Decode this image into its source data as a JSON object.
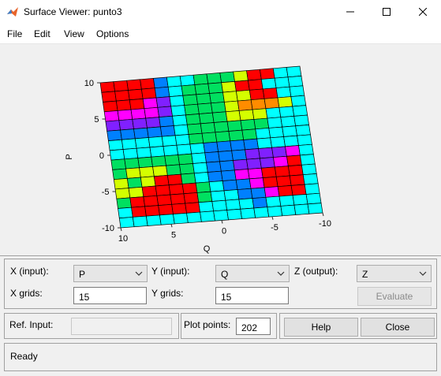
{
  "window": {
    "title": "Surface Viewer: punto3",
    "icon": "matlab-icon"
  },
  "menu": {
    "items": [
      "File",
      "Edit",
      "View",
      "Options"
    ]
  },
  "plot": {
    "ylabel": "P",
    "xlabel": "Q",
    "p_ticks": [
      "10",
      "5",
      "0",
      "-5",
      "-10"
    ],
    "q_ticks": [
      "10",
      "5",
      "0",
      "-5",
      "-10"
    ],
    "p_range": [
      -10,
      10
    ],
    "q_range": [
      -10,
      10
    ],
    "grid": 15,
    "colors": {
      "red": "#ff0000",
      "orange": "#ff8c00",
      "yellow": "#d4ff00",
      "green": "#00e060",
      "cyan": "#00ffff",
      "blue": "#0080ff",
      "purple": "#8020ff",
      "magenta": "#ff00ff"
    }
  },
  "controls": {
    "x_input_label": "X (input):",
    "x_input_value": "P",
    "y_input_label": "Y (input):",
    "y_input_value": "Q",
    "z_output_label": "Z (output):",
    "z_output_value": "Z",
    "x_grids_label": "X grids:",
    "x_grids_value": "15",
    "y_grids_label": "Y grids:",
    "y_grids_value": "15",
    "evaluate_label": "Evaluate",
    "ref_input_label": "Ref. Input:",
    "ref_input_value": "",
    "plot_points_label": "Plot points:",
    "plot_points_value": "202",
    "help_label": "Help",
    "close_label": "Close"
  },
  "status": {
    "text": "Ready"
  }
}
